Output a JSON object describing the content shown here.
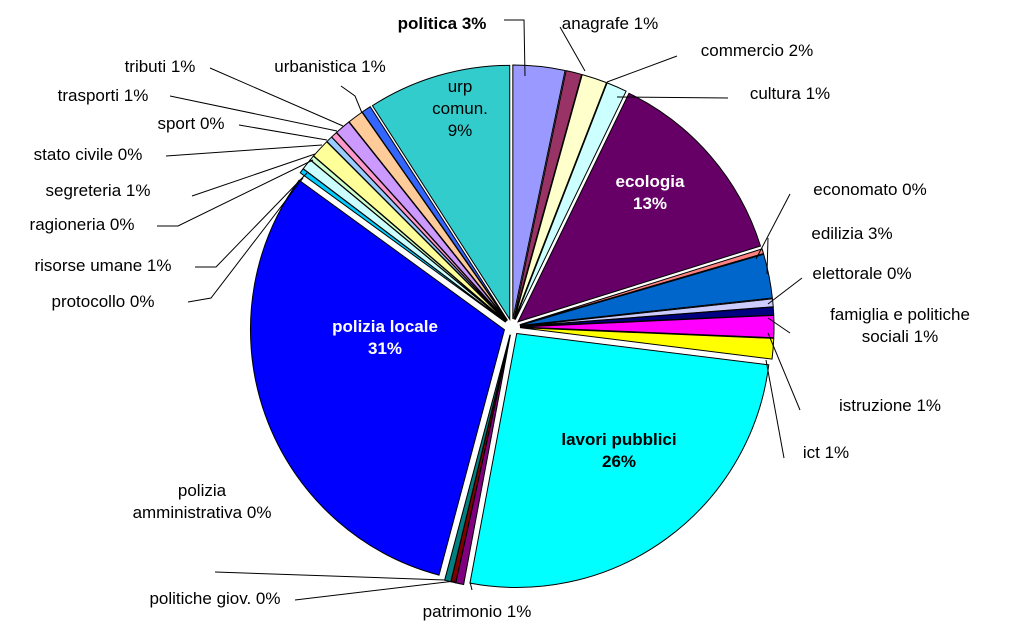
{
  "chart_data": {
    "type": "pie",
    "title": "",
    "slices": [
      {
        "label": "politica 3%",
        "lines": [
          "politica 3%"
        ],
        "value": 3.3,
        "color": "#9999ff",
        "label_style": "outside-bold"
      },
      {
        "label": "anagrafe 1%",
        "lines": [
          "anagrafe 1%"
        ],
        "value": 1.0,
        "color": "#993366",
        "label_style": "outside"
      },
      {
        "label": "commercio 2%",
        "lines": [
          "commercio 2%"
        ],
        "value": 1.6,
        "color": "#ffffcc",
        "label_style": "outside"
      },
      {
        "label": "cultura 1%",
        "lines": [
          "cultura 1%"
        ],
        "value": 1.3,
        "color": "#ccffff",
        "label_style": "outside"
      },
      {
        "label": "ecologia 13%",
        "lines": [
          "ecologia",
          "13%"
        ],
        "value": 13.0,
        "color": "#660066",
        "label_style": "inside-white"
      },
      {
        "label": "economato 0%",
        "lines": [
          "economato 0%"
        ],
        "value": 0.3,
        "color": "#ff8080",
        "label_style": "outside"
      },
      {
        "label": "edilizia 3%",
        "lines": [
          "edilizia 3%"
        ],
        "value": 2.8,
        "color": "#0066cc",
        "label_style": "outside"
      },
      {
        "label": "elettorale 0%",
        "lines": [
          "elettorale 0%"
        ],
        "value": 0.5,
        "color": "#ccccff",
        "label_style": "outside"
      },
      {
        "label": "famiglia e politiche sociali 1%",
        "lines": [
          "famiglia e politiche",
          "sociali 1%"
        ],
        "value": 0.5,
        "color": "#000080",
        "label_style": "outside"
      },
      {
        "label": "istruzione 1%",
        "lines": [
          "istruzione 1%"
        ],
        "value": 1.4,
        "color": "#ff00ff",
        "label_style": "outside"
      },
      {
        "label": "ict 1%",
        "lines": [
          "ict 1%"
        ],
        "value": 1.3,
        "color": "#ffff00",
        "label_style": "outside"
      },
      {
        "label": "lavori pubblici 26%",
        "lines": [
          "lavori pubblici",
          "26%"
        ],
        "value": 26.0,
        "color": "#00ffff",
        "label_style": "inside-bold"
      },
      {
        "label": "patrimonio 1%",
        "lines": [
          "patrimonio 1%"
        ],
        "value": 0.5,
        "color": "#800080",
        "label_style": "outside"
      },
      {
        "label": "politiche giov. 0%",
        "lines": [
          "politiche giov. 0%"
        ],
        "value": 0.3,
        "color": "#800000",
        "label_style": "outside"
      },
      {
        "label": "polizia amministrativa 0%",
        "lines": [
          "polizia",
          "amministrativa 0%"
        ],
        "value": 0.4,
        "color": "#008080",
        "label_style": "outside"
      },
      {
        "label": "polizia locale 31%",
        "lines": [
          "polizia locale",
          "31%"
        ],
        "value": 30.9,
        "color": "#0000ff",
        "label_style": "inside-white"
      },
      {
        "label": "protocollo 0%",
        "lines": [
          "protocollo 0%"
        ],
        "value": 0.3,
        "color": "#00ccff",
        "label_style": "outside"
      },
      {
        "label": "risorse umane 1%",
        "lines": [
          "risorse umane 1%"
        ],
        "value": 0.7,
        "color": "#ccffff",
        "label_style": "outside"
      },
      {
        "label": "ragioneria 0%",
        "lines": [
          "ragioneria 0%"
        ],
        "value": 0.3,
        "color": "#ccffcc",
        "label_style": "outside"
      },
      {
        "label": "segreteria 1%",
        "lines": [
          "segreteria 1%"
        ],
        "value": 1.2,
        "color": "#ffff99",
        "label_style": "outside"
      },
      {
        "label": "stato civile 0%",
        "lines": [
          "stato civile 0%"
        ],
        "value": 0.4,
        "color": "#99ccff",
        "label_style": "outside"
      },
      {
        "label": "sport 0%",
        "lines": [
          "sport 0%"
        ],
        "value": 0.4,
        "color": "#ff99cc",
        "label_style": "outside"
      },
      {
        "label": "trasporti 1%",
        "lines": [
          "trasporti 1%"
        ],
        "value": 1.0,
        "color": "#cc99ff",
        "label_style": "outside"
      },
      {
        "label": "tributi 1%",
        "lines": [
          "tributi 1%"
        ],
        "value": 1.0,
        "color": "#ffcc99",
        "label_style": "outside"
      },
      {
        "label": "urbanistica 1%",
        "lines": [
          "urbanistica 1%"
        ],
        "value": 0.6,
        "color": "#3366ff",
        "label_style": "outside"
      },
      {
        "label": "urp comun. 9%",
        "lines": [
          "urp",
          "comun.",
          "9%"
        ],
        "value": 9.1,
        "color": "#33cccc",
        "label_style": "inside-normal"
      }
    ]
  }
}
